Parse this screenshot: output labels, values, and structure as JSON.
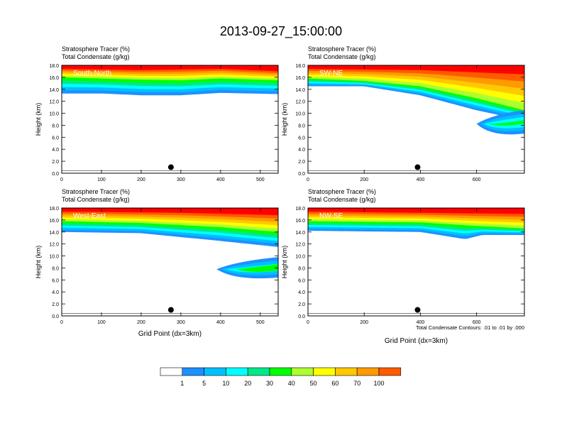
{
  "title": "2013-09-27_15:00:00",
  "panel_var1": "Stratosphere Tracer   (%)",
  "panel_var2": "Total Condensate   (g/kg)",
  "contour_note": "Total Condensate Contours: .01 to .01 by .000",
  "colors": {
    "levels": [
      "#ffffff",
      "#1e90ff",
      "#00bfff",
      "#00ffff",
      "#00e88a",
      "#00ff00",
      "#adff2f",
      "#ffff00",
      "#ffc800",
      "#ff9a00",
      "#ff5a00",
      "#ff0000"
    ]
  },
  "chart_data": [
    {
      "type": "heatmap",
      "label": "South-North",
      "xlim": [
        0,
        545
      ],
      "xticks": [
        0,
        100,
        200,
        300,
        400,
        500
      ],
      "ylim": [
        0,
        18
      ],
      "yticks": [
        "0.0",
        "2.0",
        "4.0",
        "6.0",
        "8.0",
        "10.0",
        "12.0",
        "14.0",
        "16.0",
        "18.0"
      ],
      "ylabel": "Height (km)",
      "xlabel": "",
      "marker_x": 275,
      "marker_y": 1.0,
      "lower_profile": [
        [
          0,
          16.0
        ],
        [
          100,
          15.8
        ],
        [
          200,
          15.6
        ],
        [
          300,
          15.5
        ],
        [
          400,
          15.8
        ],
        [
          545,
          15.5
        ]
      ],
      "upper_profile": [
        [
          0,
          17.4
        ],
        [
          200,
          17.2
        ],
        [
          400,
          17.4
        ],
        [
          545,
          17.0
        ]
      ],
      "base_profile": [
        [
          0,
          13.3
        ],
        [
          100,
          13.3
        ],
        [
          200,
          13.0
        ],
        [
          300,
          13.0
        ],
        [
          400,
          13.4
        ],
        [
          545,
          13.2
        ]
      ]
    },
    {
      "type": "heatmap",
      "label": "SW-NE",
      "xlim": [
        0,
        770
      ],
      "xticks": [
        0,
        200,
        400,
        600
      ],
      "ylim": [
        0,
        18
      ],
      "yticks": [
        "0.0",
        "2.0",
        "4.0",
        "6.0",
        "8.0",
        "10.0",
        "12.0",
        "14.0",
        "16.0",
        "18.0"
      ],
      "ylabel": "Height (km)",
      "xlabel": "",
      "marker_x": 390,
      "marker_y": 1.0,
      "lower_profile": [
        [
          0,
          15.8
        ],
        [
          200,
          15.4
        ],
        [
          400,
          14.5
        ],
        [
          600,
          12.5
        ],
        [
          770,
          10.5
        ]
      ],
      "upper_profile": [
        [
          0,
          17.4
        ],
        [
          400,
          17.2
        ],
        [
          770,
          16.5
        ]
      ],
      "base_profile": [
        [
          0,
          14.5
        ],
        [
          200,
          14.5
        ],
        [
          400,
          13.0
        ],
        [
          600,
          10.5
        ],
        [
          700,
          9.5
        ],
        [
          770,
          9.0
        ]
      ]
    },
    {
      "type": "heatmap",
      "label": "West-East",
      "xlim": [
        0,
        545
      ],
      "xticks": [
        0,
        100,
        200,
        300,
        400,
        500
      ],
      "ylim": [
        0,
        18
      ],
      "yticks": [
        "0.0",
        "2.0",
        "4.0",
        "6.0",
        "8.0",
        "10.0",
        "12.0",
        "14.0",
        "16.0",
        "18.0"
      ],
      "ylabel": "Height (km)",
      "xlabel": "Grid Point (dx=3km)",
      "marker_x": 275,
      "marker_y": 1.0,
      "lower_profile": [
        [
          0,
          15.8
        ],
        [
          200,
          15.5
        ],
        [
          400,
          14.8
        ],
        [
          545,
          14.0
        ]
      ],
      "upper_profile": [
        [
          0,
          17.4
        ],
        [
          300,
          17.2
        ],
        [
          545,
          16.8
        ]
      ],
      "base_profile": [
        [
          0,
          14.0
        ],
        [
          200,
          13.8
        ],
        [
          400,
          12.5
        ],
        [
          545,
          11.5
        ]
      ]
    },
    {
      "type": "heatmap",
      "label": "NW-SE",
      "xlim": [
        0,
        770
      ],
      "xticks": [
        0,
        200,
        400,
        600
      ],
      "ylim": [
        0,
        18
      ],
      "yticks": [
        "0.0",
        "2.0",
        "4.0",
        "6.0",
        "8.0",
        "10.0",
        "12.0",
        "14.0",
        "16.0",
        "18.0"
      ],
      "ylabel": "Height (km)",
      "xlabel": "Grid Point (dx=3km)",
      "marker_x": 390,
      "marker_y": 1.0,
      "lower_profile": [
        [
          0,
          15.8
        ],
        [
          400,
          15.6
        ],
        [
          600,
          15.0
        ],
        [
          770,
          14.6
        ]
      ],
      "upper_profile": [
        [
          0,
          17.4
        ],
        [
          400,
          17.2
        ],
        [
          770,
          17.0
        ]
      ],
      "base_profile": [
        [
          0,
          14.2
        ],
        [
          400,
          14.0
        ],
        [
          560,
          12.8
        ],
        [
          620,
          13.5
        ],
        [
          770,
          13.5
        ]
      ]
    }
  ],
  "legend": {
    "labels": [
      "1",
      "5",
      "10",
      "20",
      "30",
      "40",
      "50",
      "60",
      "70",
      "100"
    ]
  }
}
